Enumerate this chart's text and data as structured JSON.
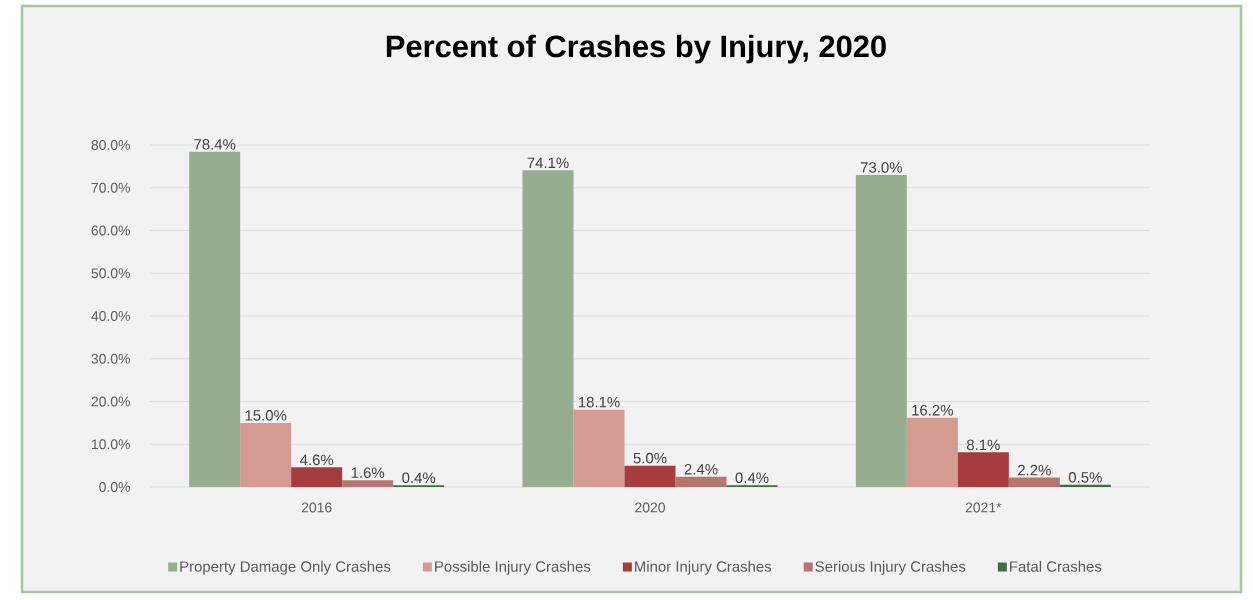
{
  "chart_data": {
    "type": "bar",
    "title": "Percent of Crashes by Injury, 2020",
    "categories": [
      "2016",
      "2020",
      "2021*"
    ],
    "series": [
      {
        "name": "Property Damage Only Crashes",
        "color": "#97ad8f",
        "values": [
          78.4,
          74.1,
          73.0
        ],
        "value_labels": [
          "78.4%",
          "74.1%",
          "73.0%"
        ]
      },
      {
        "name": "Possible Injury Crashes",
        "color": "#d39b91",
        "values": [
          15.0,
          18.1,
          16.2
        ],
        "value_labels": [
          "15.0%",
          "18.1%",
          "16.2%"
        ]
      },
      {
        "name": "Minor Injury Crashes",
        "color": "#a63c3e",
        "values": [
          4.6,
          5.0,
          8.1
        ],
        "value_labels": [
          "4.6%",
          "5.0%",
          "8.1%"
        ]
      },
      {
        "name": "Serious Injury Crashes",
        "color": "#b77570",
        "values": [
          1.6,
          2.4,
          2.2
        ],
        "value_labels": [
          "1.6%",
          "2.4%",
          "2.2%"
        ]
      },
      {
        "name": "Fatal Crashes",
        "color": "#3f6d40",
        "values": [
          0.4,
          0.4,
          0.5
        ],
        "value_labels": [
          "0.4%",
          "0.4%",
          "0.5%"
        ]
      }
    ],
    "ylim": [
      0,
      80
    ],
    "yticks": [
      {
        "value": 0,
        "label": "0.0%"
      },
      {
        "value": 10,
        "label": "10.0%"
      },
      {
        "value": 20,
        "label": "20.0%"
      },
      {
        "value": 30,
        "label": "30.0%"
      },
      {
        "value": 40,
        "label": "40.0%"
      },
      {
        "value": 50,
        "label": "50.0%"
      },
      {
        "value": 60,
        "label": "60.0%"
      },
      {
        "value": 70,
        "label": "70.0%"
      },
      {
        "value": 80,
        "label": "80.0%"
      }
    ],
    "grid": "y",
    "legend": "bottom"
  }
}
